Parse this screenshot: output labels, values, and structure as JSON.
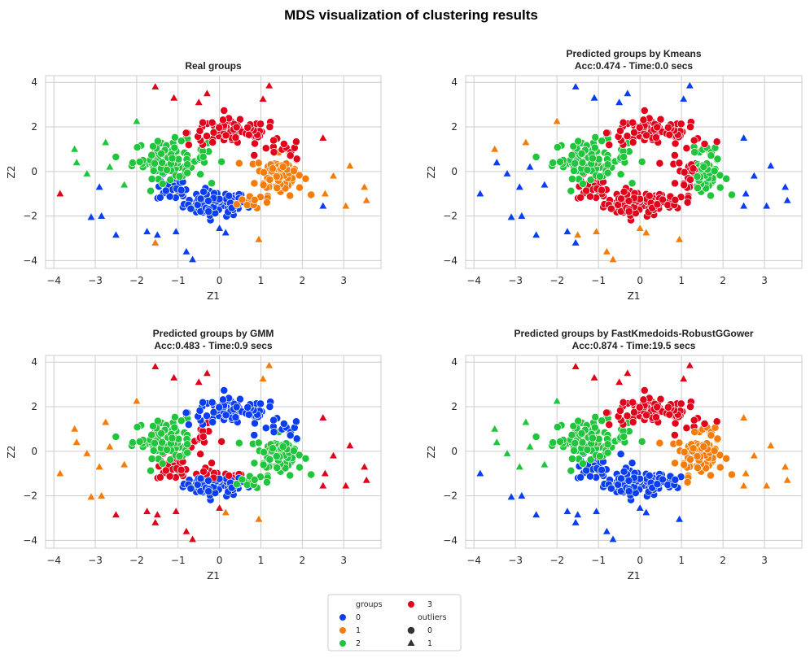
{
  "figure": {
    "title": "MDS visualization of clustering results"
  },
  "palette": {
    "group_colors": [
      "#0b3ef2",
      "#f57c0a",
      "#1fc53a",
      "#e2001a"
    ],
    "edge": "#ffffff",
    "grid": "#cccccc",
    "spine": "#cccccc",
    "marker_neutral": "#333333"
  },
  "legend": {
    "groups_title": "groups",
    "groups": [
      "0",
      "1",
      "2",
      "3"
    ],
    "outliers_title": "outliers",
    "outliers": [
      {
        "label": "0",
        "marker": "circle"
      },
      {
        "label": "1",
        "marker": "triangle"
      }
    ],
    "placement": "bottom-center"
  },
  "chart_data": [
    {
      "type": "scatter",
      "title": "Real groups",
      "xlabel": "Z1",
      "ylabel": "Z2",
      "xlim": [
        -4.2,
        3.9
      ],
      "ylim": [
        -4.35,
        4.3
      ],
      "xticks": [
        -4,
        -3,
        -2,
        -1,
        0,
        1,
        2,
        3
      ],
      "yticks": [
        -4,
        -2,
        0,
        2,
        4
      ],
      "grid": true,
      "assignment": "real",
      "group_names": [
        "0",
        "1",
        "2",
        "3"
      ]
    },
    {
      "type": "scatter",
      "title": "Predicted groups by Kmeans\nAcc:0.474 - Time:0.0 secs",
      "xlabel": "Z1",
      "ylabel": "Z2",
      "xlim": [
        -4.2,
        3.9
      ],
      "ylim": [
        -4.35,
        4.3
      ],
      "xticks": [
        -4,
        -3,
        -2,
        -1,
        0,
        1,
        2,
        3
      ],
      "yticks": [
        -4,
        -2,
        0,
        2,
        4
      ],
      "grid": true,
      "assignment": "kmeans",
      "accuracy": 0.474,
      "time_secs": 0.0,
      "group_names": [
        "0",
        "1",
        "2",
        "3"
      ]
    },
    {
      "type": "scatter",
      "title": "Predicted groups by GMM\nAcc:0.483 - Time:0.9 secs",
      "xlabel": "Z1",
      "ylabel": "Z2",
      "xlim": [
        -4.2,
        3.9
      ],
      "ylim": [
        -4.35,
        4.3
      ],
      "xticks": [
        -4,
        -3,
        -2,
        -1,
        0,
        1,
        2,
        3
      ],
      "yticks": [
        -4,
        -2,
        0,
        2,
        4
      ],
      "grid": true,
      "assignment": "gmm",
      "accuracy": 0.483,
      "time_secs": 0.9,
      "group_names": [
        "0",
        "1",
        "2",
        "3"
      ]
    },
    {
      "type": "scatter",
      "title": "Predicted groups by FastKmedoids-RobustGGower\nAcc:0.874 - Time:19.5 secs",
      "xlabel": "Z1",
      "ylabel": "Z2",
      "xlim": [
        -4.2,
        3.9
      ],
      "ylim": [
        -4.35,
        4.3
      ],
      "xticks": [
        -4,
        -3,
        -2,
        -1,
        0,
        1,
        2,
        3
      ],
      "yticks": [
        -4,
        -2,
        0,
        2,
        4
      ],
      "grid": true,
      "assignment": "fkm",
      "accuracy": 0.874,
      "time_secs": 19.5,
      "group_names": [
        "0",
        "1",
        "2",
        "3"
      ]
    }
  ],
  "clusters": {
    "inliers": [
      {
        "group": 0,
        "cx": -0.1,
        "cy": -1.45,
        "sx": 0.38,
        "sy": 0.28,
        "n": 95
      },
      {
        "group": 0,
        "cx": -1.15,
        "cy": -0.75,
        "sx": 0.18,
        "sy": 0.3,
        "n": 25
      },
      {
        "group": 1,
        "cx": 1.45,
        "cy": -0.15,
        "sx": 0.28,
        "sy": 0.45,
        "n": 85
      },
      {
        "group": 1,
        "cx": 0.75,
        "cy": -1.3,
        "sx": 0.22,
        "sy": 0.22,
        "n": 12
      },
      {
        "group": 2,
        "cx": -1.2,
        "cy": 0.55,
        "sx": 0.45,
        "sy": 0.42,
        "n": 100
      },
      {
        "group": 3,
        "cx": 0.35,
        "cy": 1.75,
        "sx": 0.55,
        "sy": 0.3,
        "n": 90
      },
      {
        "group": 3,
        "cx": 1.5,
        "cy": 0.95,
        "sx": 0.25,
        "sy": 0.25,
        "n": 15
      }
    ],
    "outliers": [
      {
        "z1": -3.85,
        "z2": -1.0,
        "group": 3
      },
      {
        "z1": -3.5,
        "z2": 1.0,
        "group": 2
      },
      {
        "z1": -3.45,
        "z2": 0.4,
        "group": 2
      },
      {
        "z1": -3.1,
        "z2": -2.05,
        "group": 0
      },
      {
        "z1": -2.85,
        "z2": -2.0,
        "group": 0
      },
      {
        "z1": -2.75,
        "z2": 1.3,
        "group": 2
      },
      {
        "z1": -2.5,
        "z2": -2.85,
        "group": 0
      },
      {
        "z1": -2.3,
        "z2": -0.6,
        "group": 2
      },
      {
        "z1": -2.0,
        "z2": 2.25,
        "group": 2
      },
      {
        "z1": -1.75,
        "z2": -2.7,
        "group": 0
      },
      {
        "z1": -1.55,
        "z2": -3.2,
        "group": 1
      },
      {
        "z1": -1.5,
        "z2": -2.85,
        "group": 0
      },
      {
        "z1": -1.55,
        "z2": 3.8,
        "group": 3
      },
      {
        "z1": -1.1,
        "z2": 3.3,
        "group": 3
      },
      {
        "z1": -1.05,
        "z2": -2.7,
        "group": 0
      },
      {
        "z1": -0.8,
        "z2": -3.6,
        "group": 0
      },
      {
        "z1": -0.65,
        "z2": -3.95,
        "group": 0
      },
      {
        "z1": -0.5,
        "z2": 3.1,
        "group": 3
      },
      {
        "z1": -0.3,
        "z2": 3.5,
        "group": 3
      },
      {
        "z1": 0.0,
        "z2": -2.55,
        "group": 0
      },
      {
        "z1": 0.15,
        "z2": -2.75,
        "group": 0
      },
      {
        "z1": 0.95,
        "z2": -3.05,
        "group": 1
      },
      {
        "z1": 1.2,
        "z2": 3.85,
        "group": 3
      },
      {
        "z1": 1.05,
        "z2": 3.25,
        "group": 3
      },
      {
        "z1": 2.5,
        "z2": 1.5,
        "group": 3
      },
      {
        "z1": 2.5,
        "z2": -1.55,
        "group": 0
      },
      {
        "z1": 2.75,
        "z2": -0.2,
        "group": 1
      },
      {
        "z1": 3.05,
        "z2": -1.55,
        "group": 1
      },
      {
        "z1": 3.15,
        "z2": 0.25,
        "group": 1
      },
      {
        "z1": 3.5,
        "z2": -0.7,
        "group": 1
      },
      {
        "z1": 3.55,
        "z2": -1.3,
        "group": 1
      },
      {
        "z1": 2.55,
        "z2": -1.0,
        "group": 1
      },
      {
        "z1": -2.9,
        "z2": -0.7,
        "group": 0
      },
      {
        "z1": -3.2,
        "z2": -0.1,
        "group": 2
      },
      {
        "z1": -2.65,
        "z2": 0.2,
        "group": 2
      }
    ]
  }
}
